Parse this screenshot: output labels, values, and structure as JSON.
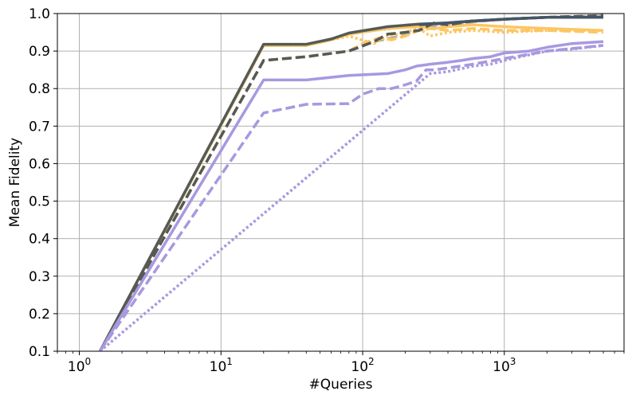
{
  "chart_data": {
    "type": "line",
    "xlabel": "#Queries",
    "ylabel": "Mean Fidelity",
    "xscale": "log",
    "xlim": [
      0.7,
      7000
    ],
    "ylim": [
      0.1,
      1.0
    ],
    "grid": true,
    "x_ticks": [
      {
        "value": 1,
        "base": "10",
        "exp": "0"
      },
      {
        "value": 10,
        "base": "10",
        "exp": "1"
      },
      {
        "value": 100,
        "base": "10",
        "exp": "2"
      },
      {
        "value": 1000,
        "base": "10",
        "exp": "3"
      }
    ],
    "y_ticks": [
      {
        "value": 0.1,
        "label": "0.1"
      },
      {
        "value": 0.2,
        "label": "0.2"
      },
      {
        "value": 0.3,
        "label": "0.3"
      },
      {
        "value": 0.4,
        "label": "0.4"
      },
      {
        "value": 0.5,
        "label": "0.5"
      },
      {
        "value": 0.6,
        "label": "0.6"
      },
      {
        "value": 0.7,
        "label": "0.7"
      },
      {
        "value": 0.8,
        "label": "0.8"
      },
      {
        "value": 0.9,
        "label": "0.9"
      },
      {
        "value": 1.0,
        "label": "1.0"
      }
    ],
    "series": [
      {
        "color": "#b0b0b0",
        "dash": "dotted",
        "x": [
          1.4,
          20,
          40,
          80,
          120,
          160,
          200,
          250,
          320,
          400,
          600,
          1000,
          2000,
          5000
        ],
        "y": [
          0.1,
          0.915,
          0.915,
          0.945,
          0.955,
          0.96,
          0.965,
          0.965,
          0.97,
          0.975,
          0.98,
          0.985,
          0.99,
          0.995
        ]
      },
      {
        "color": "#b0b0b0",
        "dash": "dashed",
        "x": [
          1.4,
          20,
          40,
          80,
          120,
          160,
          200,
          250,
          320,
          400,
          600,
          1000,
          2000,
          5000
        ],
        "y": [
          0.1,
          0.875,
          0.885,
          0.9,
          0.925,
          0.935,
          0.945,
          0.955,
          0.965,
          0.97,
          0.978,
          0.985,
          0.99,
          0.995
        ]
      },
      {
        "color": "#fdc663",
        "dash": "dotted",
        "x": [
          1.4,
          20,
          40,
          80,
          120,
          150,
          180,
          200,
          250,
          300,
          400,
          600,
          1000,
          2000,
          5000
        ],
        "y": [
          0.1,
          0.915,
          0.915,
          0.94,
          0.92,
          0.94,
          0.945,
          0.95,
          0.96,
          0.94,
          0.95,
          0.955,
          0.95,
          0.955,
          0.955
        ]
      },
      {
        "color": "#fdc663",
        "dash": "dashed",
        "x": [
          1.4,
          20,
          40,
          80,
          100,
          130,
          160,
          200,
          250,
          300,
          400,
          600,
          1000,
          2000,
          5000
        ],
        "y": [
          0.1,
          0.875,
          0.885,
          0.9,
          0.92,
          0.935,
          0.93,
          0.94,
          0.955,
          0.96,
          0.955,
          0.96,
          0.955,
          0.955,
          0.95
        ]
      },
      {
        "color": "#fdc663",
        "dash": "solid",
        "x": [
          1.4,
          20,
          40,
          60,
          80,
          150,
          250,
          320,
          400,
          600,
          1000,
          2000,
          5000
        ],
        "y": [
          0.1,
          0.915,
          0.915,
          0.93,
          0.945,
          0.96,
          0.965,
          0.96,
          0.965,
          0.97,
          0.965,
          0.96,
          0.955
        ]
      },
      {
        "color": "#555a55",
        "dash": "dashed",
        "x": [
          1.4,
          20,
          40,
          80,
          120,
          150,
          200,
          250,
          300,
          320,
          400,
          600,
          1000,
          2000,
          5000
        ],
        "y": [
          0.1,
          0.875,
          0.885,
          0.9,
          0.925,
          0.945,
          0.95,
          0.955,
          0.97,
          0.975,
          0.97,
          0.98,
          0.985,
          0.99,
          0.995
        ]
      },
      {
        "color": "#555a55",
        "dash": "solid",
        "x": [
          1.4,
          20,
          40,
          60,
          80,
          150,
          250,
          400,
          600,
          1000,
          2000,
          5000
        ],
        "y": [
          0.1,
          0.918,
          0.918,
          0.932,
          0.948,
          0.965,
          0.972,
          0.975,
          0.98,
          0.985,
          0.99,
          0.99
        ]
      },
      {
        "color": "#445566",
        "dash": "solid",
        "x": [
          250,
          400,
          600,
          1000,
          2000,
          5000
        ],
        "y": [
          0.97,
          0.975,
          0.98,
          0.985,
          0.99,
          0.99
        ]
      },
      {
        "color": "#a898e0",
        "dash": "dotted",
        "x": [
          1.4,
          300,
          400,
          600,
          800,
          1000,
          1500,
          2000,
          3000,
          5000
        ],
        "y": [
          0.1,
          0.84,
          0.845,
          0.86,
          0.865,
          0.875,
          0.89,
          0.9,
          0.905,
          0.915
        ]
      },
      {
        "color": "#a898e0",
        "dash": "dashed",
        "x": [
          1.4,
          20,
          40,
          80,
          100,
          130,
          160,
          200,
          240,
          280,
          320,
          400,
          600,
          1000,
          2000,
          5000
        ],
        "y": [
          0.1,
          0.735,
          0.758,
          0.76,
          0.785,
          0.8,
          0.8,
          0.81,
          0.82,
          0.85,
          0.85,
          0.855,
          0.865,
          0.88,
          0.9,
          0.915
        ]
      },
      {
        "color": "#a898e0",
        "dash": "solid",
        "x": [
          1.4,
          20,
          40,
          80,
          150,
          200,
          240,
          300,
          400,
          500,
          600,
          800,
          1000,
          1500,
          2000,
          3000,
          5000
        ],
        "y": [
          0.1,
          0.823,
          0.823,
          0.835,
          0.84,
          0.85,
          0.86,
          0.865,
          0.87,
          0.875,
          0.88,
          0.885,
          0.895,
          0.9,
          0.91,
          0.92,
          0.925
        ]
      }
    ]
  }
}
